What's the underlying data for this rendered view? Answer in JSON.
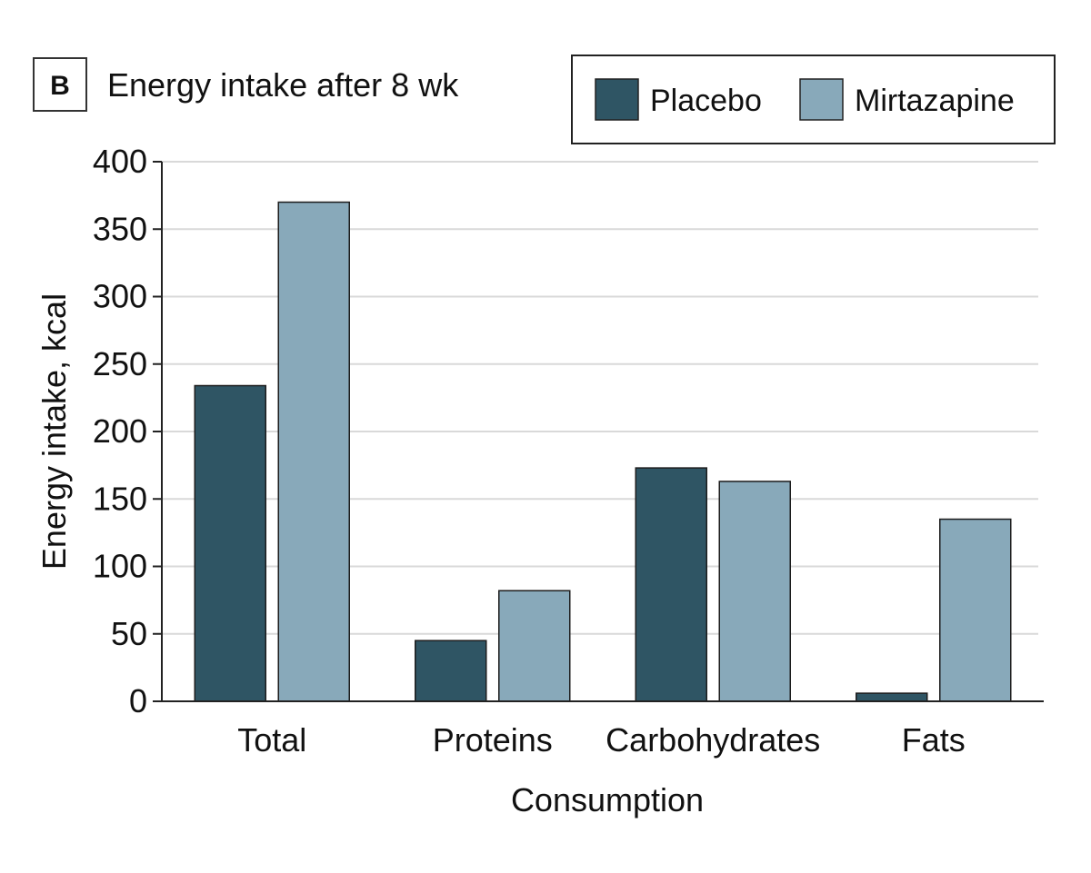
{
  "panel_label": "B",
  "chart_data": {
    "type": "bar",
    "title": "Energy intake after 8 wk",
    "xlabel": "Consumption",
    "ylabel": "Energy intake, kcal",
    "categories": [
      "Total",
      "Proteins",
      "Carbohydrates",
      "Fats"
    ],
    "series": [
      {
        "name": "Placebo",
        "values": [
          234,
          45,
          173,
          6
        ],
        "color": "#2f5564"
      },
      {
        "name": "Mirtazapine",
        "values": [
          370,
          82,
          163,
          135
        ],
        "color": "#88a9ba"
      }
    ],
    "ylim": [
      0,
      400
    ],
    "yticks": [
      "0",
      "50",
      "100",
      "150",
      "200",
      "250",
      "300",
      "350",
      "400"
    ],
    "grid": true,
    "legend_position": "top-right"
  }
}
